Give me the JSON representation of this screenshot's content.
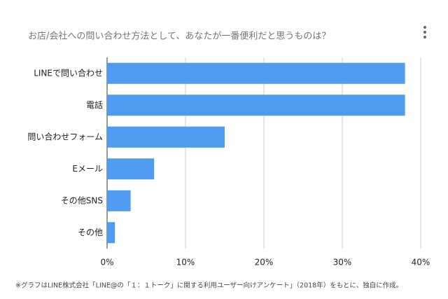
{
  "chart_data": {
    "type": "bar",
    "orientation": "horizontal",
    "title": "お店/会社への問い合わせ方法として、あなたが一番便利だと思うものは？",
    "categories": [
      "LINEで問い合わせ",
      "電話",
      "問い合わせフォーム",
      "Eメール",
      "その他SNS",
      "その他"
    ],
    "values": [
      38,
      38,
      15,
      6,
      3,
      1
    ],
    "color": "#4f9bef",
    "xlim": [
      0,
      40
    ],
    "xticks": [
      {
        "value": 0,
        "label": "0%"
      },
      {
        "value": 10,
        "label": "10%"
      },
      {
        "value": 20,
        "label": "20%"
      },
      {
        "value": 30,
        "label": "30%"
      },
      {
        "value": 40,
        "label": "40%"
      }
    ],
    "grid": true,
    "note": "※グラフはLINE株式会社「LINE@の「１：１トーク」に関する利用ユーザー向けアンケート」（2018年）をもとに、独自に作成。"
  }
}
